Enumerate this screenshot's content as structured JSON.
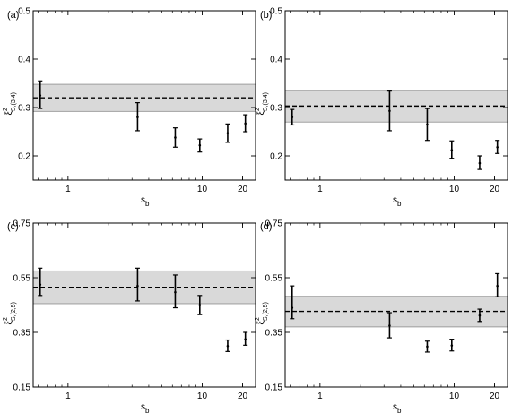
{
  "chart_data": [
    {
      "type": "scatter",
      "panel_label": "(a)",
      "xlabel": {
        "main": "s",
        "sub": "b"
      },
      "ylabel": {
        "main": "ξ",
        "sup": "2",
        "sub": "S,(3,4)"
      },
      "xscale": "log",
      "xlim": [
        0.55,
        25
      ],
      "ylim": [
        0.15,
        0.5
      ],
      "xticks": [
        1,
        10,
        20
      ],
      "xtick_labels": [
        "1",
        "10",
        "20"
      ],
      "yticks": [
        0.2,
        0.3,
        0.4,
        0.5
      ],
      "ytick_labels": [
        "0.2",
        "0.3",
        "0.4",
        "0.5"
      ],
      "reference_line": 0.32,
      "band": [
        0.292,
        0.348
      ],
      "points": [
        {
          "x": 0.62,
          "y": 0.325,
          "lo": 0.298,
          "hi": 0.355
        },
        {
          "x": 3.3,
          "y": 0.28,
          "lo": 0.252,
          "hi": 0.31
        },
        {
          "x": 6.3,
          "y": 0.238,
          "lo": 0.218,
          "hi": 0.258
        },
        {
          "x": 9.6,
          "y": 0.222,
          "lo": 0.208,
          "hi": 0.235
        },
        {
          "x": 15.5,
          "y": 0.247,
          "lo": 0.228,
          "hi": 0.266
        },
        {
          "x": 21,
          "y": 0.267,
          "lo": 0.25,
          "hi": 0.285
        }
      ]
    },
    {
      "type": "scatter",
      "panel_label": "(b)",
      "xlabel": {
        "main": "s",
        "sub": "b"
      },
      "ylabel": {
        "main": "ξ",
        "sup": "2",
        "sub": "S,(3,4)"
      },
      "xscale": "log",
      "xlim": [
        0.55,
        25
      ],
      "ylim": [
        0.15,
        0.5
      ],
      "xticks": [
        1,
        10,
        20
      ],
      "xtick_labels": [
        "1",
        "10",
        "20"
      ],
      "yticks": [
        0.2,
        0.3,
        0.4,
        0.5
      ],
      "ytick_labels": [
        "0.2",
        "0.3",
        "0.4",
        "0.5"
      ],
      "reference_line": 0.303,
      "band": [
        0.27,
        0.335
      ],
      "points": [
        {
          "x": 0.62,
          "y": 0.28,
          "lo": 0.264,
          "hi": 0.296
        },
        {
          "x": 3.3,
          "y": 0.293,
          "lo": 0.252,
          "hi": 0.334
        },
        {
          "x": 6.3,
          "y": 0.265,
          "lo": 0.232,
          "hi": 0.298
        },
        {
          "x": 9.6,
          "y": 0.212,
          "lo": 0.195,
          "hi": 0.231
        },
        {
          "x": 15.5,
          "y": 0.185,
          "lo": 0.172,
          "hi": 0.2
        },
        {
          "x": 21,
          "y": 0.218,
          "lo": 0.205,
          "hi": 0.232
        }
      ]
    },
    {
      "type": "scatter",
      "panel_label": "(c)",
      "xlabel": {
        "main": "s",
        "sub": "b"
      },
      "ylabel": {
        "main": "ξ",
        "sup": "2",
        "sub": "S,(2,5)"
      },
      "xscale": "log",
      "xlim": [
        0.55,
        25
      ],
      "ylim": [
        0.15,
        0.75
      ],
      "xticks": [
        1,
        10,
        20
      ],
      "xtick_labels": [
        "1",
        "10",
        "20"
      ],
      "yticks": [
        0.15,
        0.35,
        0.55,
        0.75
      ],
      "ytick_labels": [
        "0.15",
        "0.35",
        "0.55",
        "0.75"
      ],
      "reference_line": 0.515,
      "band": [
        0.455,
        0.575
      ],
      "points": [
        {
          "x": 0.62,
          "y": 0.525,
          "lo": 0.485,
          "hi": 0.585
        },
        {
          "x": 3.3,
          "y": 0.52,
          "lo": 0.465,
          "hi": 0.585
        },
        {
          "x": 6.3,
          "y": 0.497,
          "lo": 0.44,
          "hi": 0.56
        },
        {
          "x": 9.6,
          "y": 0.45,
          "lo": 0.415,
          "hi": 0.485
        },
        {
          "x": 15.5,
          "y": 0.3,
          "lo": 0.28,
          "hi": 0.322
        },
        {
          "x": 21,
          "y": 0.325,
          "lo": 0.303,
          "hi": 0.35
        }
      ]
    },
    {
      "type": "scatter",
      "panel_label": "(d)",
      "xlabel": {
        "main": "s",
        "sub": "b"
      },
      "ylabel": {
        "main": "ξ",
        "sup": "2",
        "sub": "S,(2,5)"
      },
      "xscale": "log",
      "xlim": [
        0.55,
        25
      ],
      "ylim": [
        0.15,
        0.75
      ],
      "xticks": [
        1,
        10,
        20
      ],
      "xtick_labels": [
        "1",
        "10",
        "20"
      ],
      "yticks": [
        0.15,
        0.35,
        0.55,
        0.75
      ],
      "ytick_labels": [
        "0.15",
        "0.35",
        "0.55",
        "0.75"
      ],
      "reference_line": 0.427,
      "band": [
        0.37,
        0.482
      ],
      "points": [
        {
          "x": 0.62,
          "y": 0.44,
          "lo": 0.4,
          "hi": 0.52
        },
        {
          "x": 3.3,
          "y": 0.375,
          "lo": 0.33,
          "hi": 0.422
        },
        {
          "x": 6.3,
          "y": 0.298,
          "lo": 0.278,
          "hi": 0.318
        },
        {
          "x": 9.6,
          "y": 0.302,
          "lo": 0.282,
          "hi": 0.325
        },
        {
          "x": 15.5,
          "y": 0.412,
          "lo": 0.39,
          "hi": 0.435
        },
        {
          "x": 21,
          "y": 0.52,
          "lo": 0.48,
          "hi": 0.565
        }
      ]
    }
  ]
}
